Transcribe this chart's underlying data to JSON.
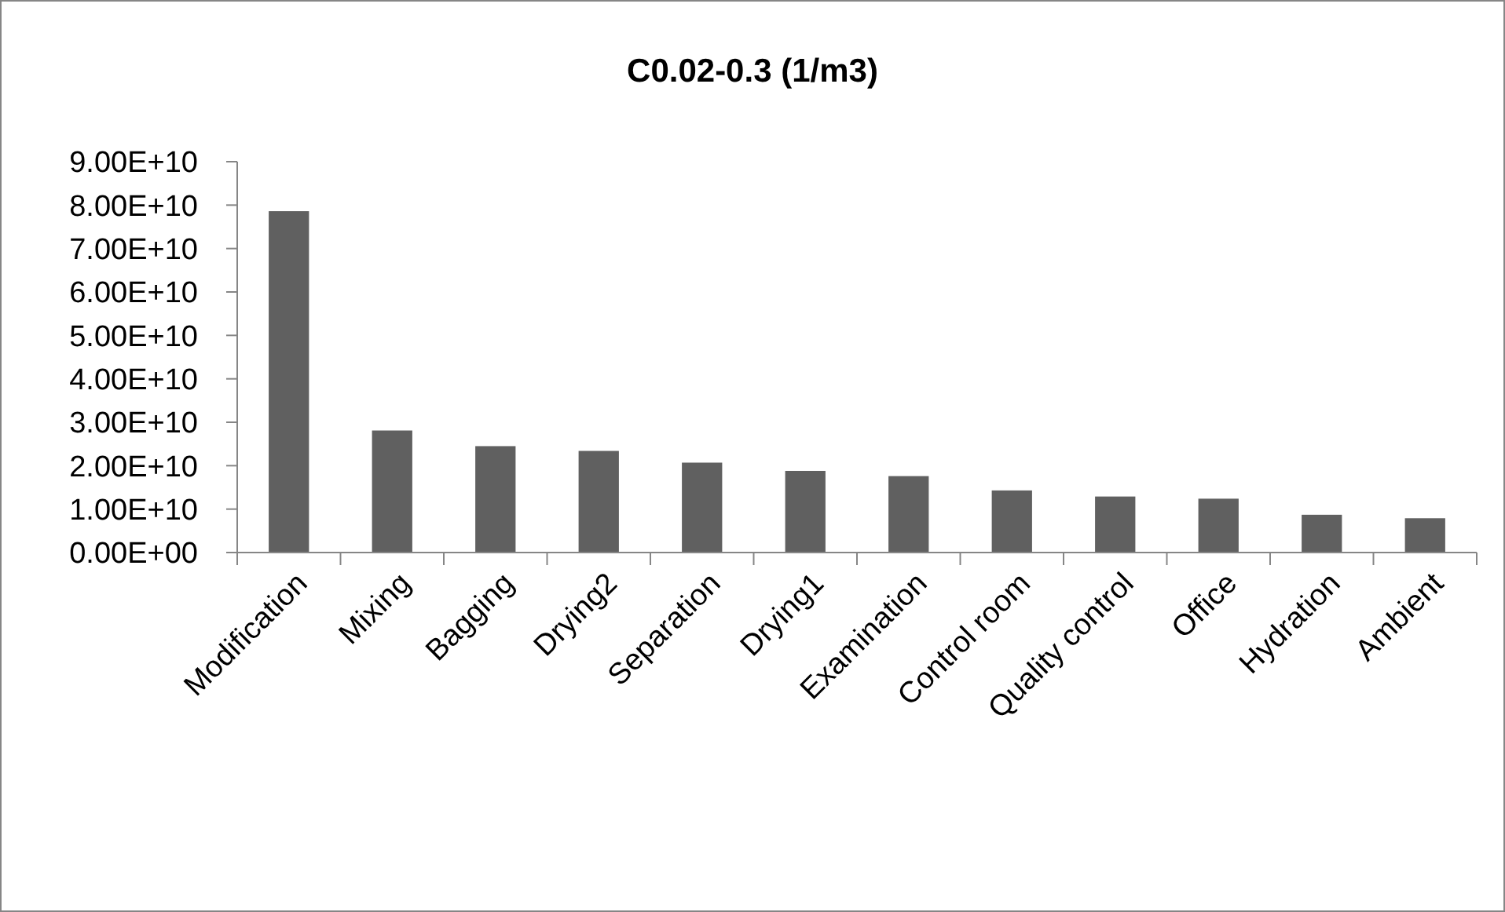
{
  "chart_data": {
    "type": "bar",
    "title": "C0.02-0.3 (1/m3)",
    "categories": [
      "Modification",
      "Mixing",
      "Bagging",
      "Drying2",
      "Separation",
      "Drying1",
      "Examination",
      "Control room",
      "Quality control",
      "Office",
      "Hydration",
      "Ambient"
    ],
    "values": [
      78600000000.0,
      28100000000.0,
      24500000000.0,
      23400000000.0,
      20700000000.0,
      18800000000.0,
      17600000000.0,
      14300000000.0,
      12900000000.0,
      12400000000.0,
      8700000000.0,
      7900000000.0
    ],
    "color": "#606060",
    "ylim": [
      0,
      90000000000.0
    ],
    "yticks": [
      {
        "value": 0,
        "label": "0.00E+00"
      },
      {
        "value": 10000000000.0,
        "label": "1.00E+10"
      },
      {
        "value": 20000000000.0,
        "label": "2.00E+10"
      },
      {
        "value": 30000000000.0,
        "label": "3.00E+10"
      },
      {
        "value": 40000000000.0,
        "label": "4.00E+10"
      },
      {
        "value": 50000000000.0,
        "label": "5.00E+10"
      },
      {
        "value": 60000000000.0,
        "label": "6.00E+10"
      },
      {
        "value": 70000000000.0,
        "label": "7.00E+10"
      },
      {
        "value": 80000000000.0,
        "label": "8.00E+10"
      },
      {
        "value": 90000000000.0,
        "label": "9.00E+10"
      }
    ],
    "grid": false
  }
}
